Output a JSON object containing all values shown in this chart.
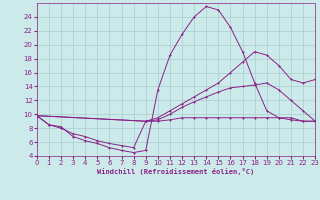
{
  "xlabel": "Windchill (Refroidissement éolien,°C)",
  "background_color": "#cdeaea",
  "grid_color": "#aacccc",
  "line_color": "#882288",
  "xlim": [
    0,
    23
  ],
  "ylim": [
    4,
    26
  ],
  "yticks": [
    4,
    6,
    8,
    10,
    12,
    14,
    16,
    18,
    20,
    22,
    24
  ],
  "xticks": [
    0,
    1,
    2,
    3,
    4,
    5,
    6,
    7,
    8,
    9,
    10,
    11,
    12,
    13,
    14,
    15,
    16,
    17,
    18,
    19,
    20,
    21,
    22,
    23
  ],
  "series": [
    {
      "x": [
        0,
        1,
        2,
        3,
        4,
        5,
        6,
        7,
        8,
        9,
        10,
        11,
        12,
        13,
        14,
        15,
        16,
        17,
        18,
        19,
        20,
        21,
        22,
        23
      ],
      "y": [
        9.8,
        8.5,
        8.2,
        6.8,
        6.2,
        5.8,
        5.2,
        4.8,
        4.5,
        4.8,
        13.5,
        18.5,
        21.5,
        24.0,
        25.5,
        25.0,
        22.5,
        19.0,
        14.5,
        10.5,
        9.5,
        9.2,
        9.0,
        9.0
      ]
    },
    {
      "x": [
        0,
        9,
        10,
        11,
        12,
        13,
        14,
        15,
        16,
        17,
        18,
        19,
        20,
        21,
        22,
        23
      ],
      "y": [
        9.8,
        9.0,
        9.5,
        10.5,
        11.5,
        12.5,
        13.5,
        14.5,
        16.0,
        17.5,
        19.0,
        18.5,
        17.0,
        15.0,
        14.5,
        15.0
      ]
    },
    {
      "x": [
        0,
        9,
        10,
        11,
        12,
        13,
        14,
        15,
        16,
        17,
        18,
        19,
        20,
        21,
        22,
        23
      ],
      "y": [
        9.8,
        9.0,
        9.2,
        10.0,
        11.0,
        11.8,
        12.5,
        13.2,
        13.8,
        14.0,
        14.2,
        14.5,
        13.5,
        12.0,
        10.5,
        9.0
      ]
    },
    {
      "x": [
        0,
        1,
        2,
        3,
        4,
        5,
        6,
        7,
        8,
        9,
        10,
        11,
        12,
        13,
        14,
        15,
        16,
        17,
        18,
        19,
        20,
        21,
        22,
        23
      ],
      "y": [
        9.8,
        8.5,
        8.0,
        7.2,
        6.8,
        6.2,
        5.8,
        5.5,
        5.2,
        9.0,
        9.0,
        9.2,
        9.5,
        9.5,
        9.5,
        9.5,
        9.5,
        9.5,
        9.5,
        9.5,
        9.5,
        9.5,
        9.0,
        9.0
      ]
    }
  ]
}
